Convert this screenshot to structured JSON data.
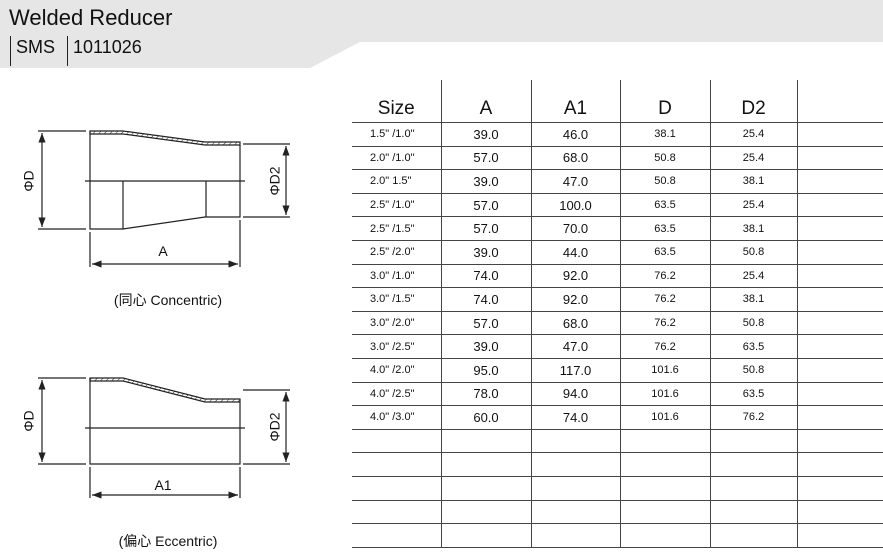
{
  "header": {
    "title": "Welded Reducer",
    "standard": "SMS",
    "code": "1011026"
  },
  "diagrams": {
    "concentric": {
      "caption": "(同心 Concentric)",
      "label_d": "ΦD",
      "label_d2": "ΦD2",
      "label_len": "A"
    },
    "eccentric": {
      "caption": "(偏心 Eccentric)",
      "label_d": "ΦD",
      "label_d2": "ΦD2",
      "label_len": "A1"
    }
  },
  "table": {
    "headers": [
      "Size",
      "A",
      "A1",
      "D",
      "D2"
    ],
    "rows": [
      [
        "1.5\"  /1.0\"",
        "39.0",
        "46.0",
        "38.1",
        "25.4"
      ],
      [
        "2.0\"  /1.0\"",
        "57.0",
        "68.0",
        "50.8",
        "25.4"
      ],
      [
        "2.0\"  1.5\"",
        "39.0",
        "47.0",
        "50.8",
        "38.1"
      ],
      [
        "2.5\"  /1.0\"",
        "57.0",
        "100.0",
        "63.5",
        "25.4"
      ],
      [
        "2.5\"  /1.5\"",
        "57.0",
        "70.0",
        "63.5",
        "38.1"
      ],
      [
        "2.5\"  /2.0\"",
        "39.0",
        "44.0",
        "63.5",
        "50.8"
      ],
      [
        "3.0\"  /1.0\"",
        "74.0",
        "92.0",
        "76.2",
        "25.4"
      ],
      [
        "3.0\"  /1.5\"",
        "74.0",
        "92.0",
        "76.2",
        "38.1"
      ],
      [
        "3.0\"  /2.0\"",
        "57.0",
        "68.0",
        "76.2",
        "50.8"
      ],
      [
        "3.0\" /2.5\"",
        "39.0",
        "47.0",
        "76.2",
        "63.5"
      ],
      [
        "4.0\"  /2.0\"",
        "95.0",
        "117.0",
        "101.6",
        "50.8"
      ],
      [
        "4.0\" /2.5\"",
        "78.0",
        "94.0",
        "101.6",
        "63.5"
      ],
      [
        "4.0\" /3.0\"",
        "60.0",
        "74.0",
        "101.6",
        "76.2"
      ]
    ]
  }
}
